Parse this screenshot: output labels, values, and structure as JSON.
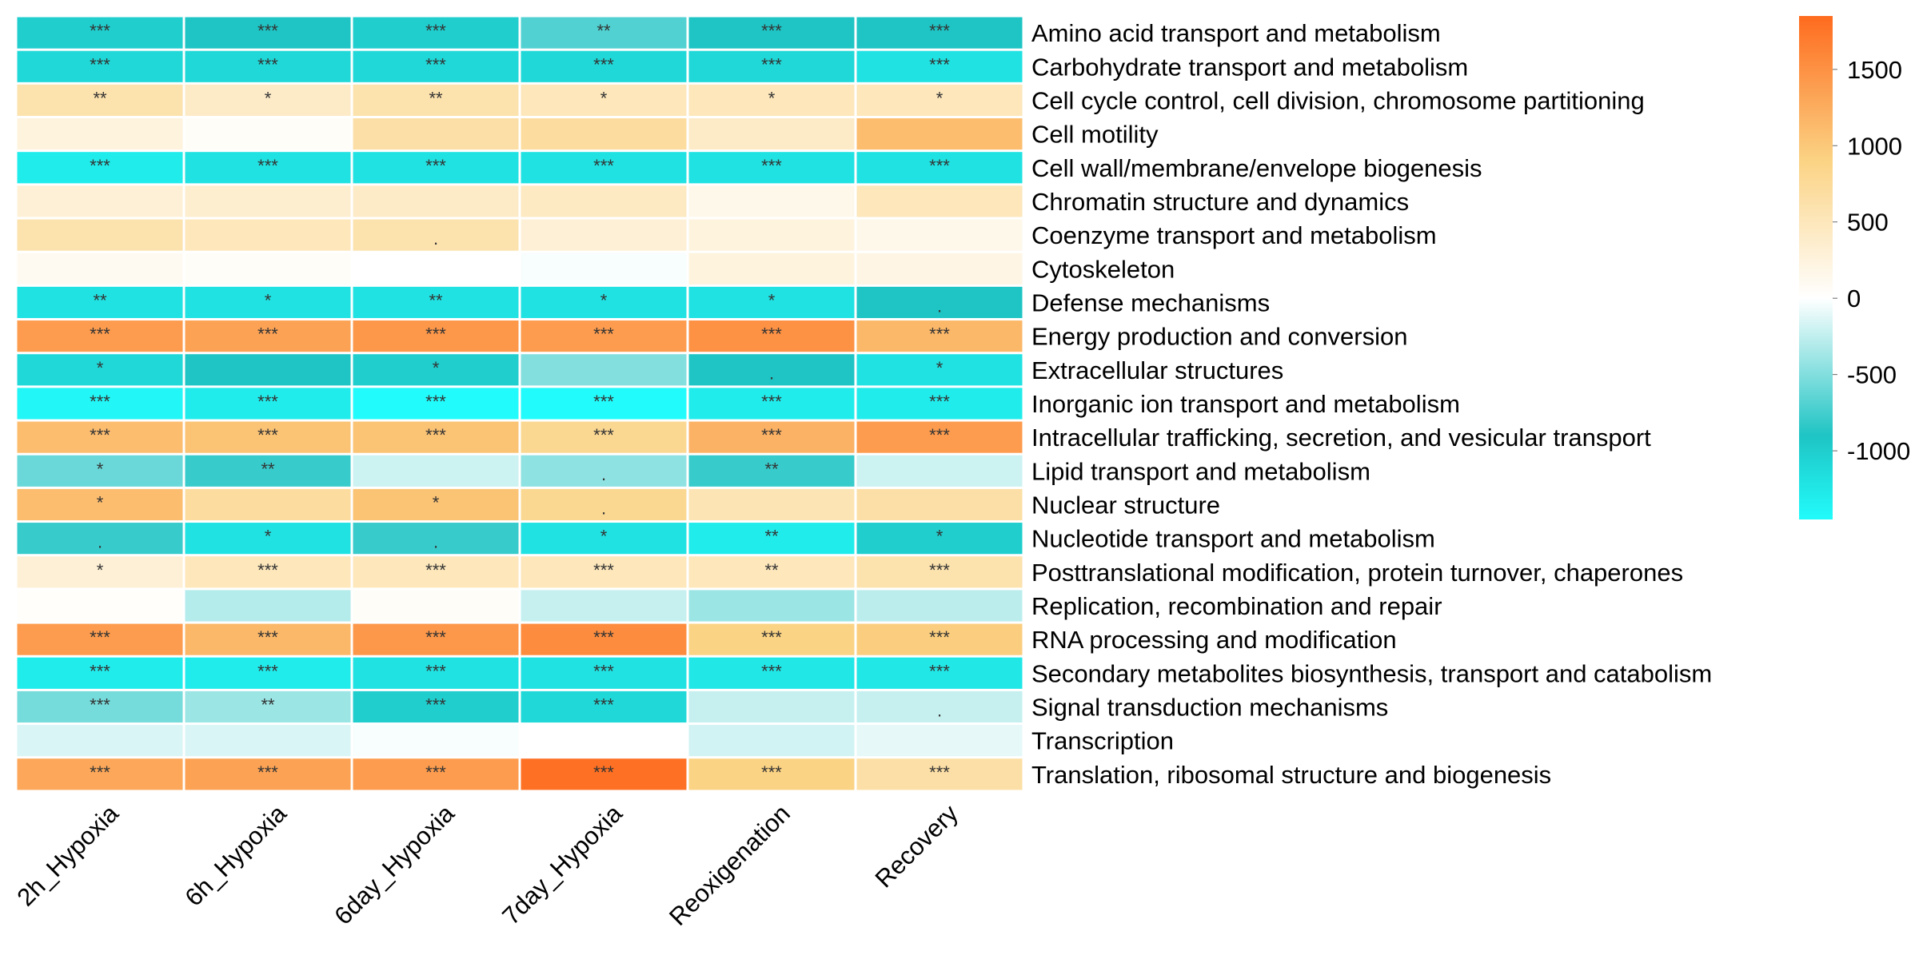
{
  "chart_data": {
    "type": "heatmap",
    "title": "",
    "xlabel": "",
    "ylabel": "",
    "columns": [
      "2h_Hypoxia",
      "6h_Hypoxia",
      "6day_Hypoxia",
      "7day_Hypoxia",
      "Reoxigenation",
      "Recovery"
    ],
    "rows": [
      "Amino acid transport and metabolism",
      "Carbohydrate transport and metabolism",
      "Cell cycle control, cell division, chromosome partitioning",
      "Cell motility",
      "Cell wall/membrane/envelope biogenesis",
      "Chromatin structure and dynamics",
      "Coenzyme transport and metabolism",
      "Cytoskeleton",
      "Defense mechanisms",
      "Energy production and conversion",
      "Extracellular structures",
      "Inorganic ion transport and metabolism",
      "Intracellular trafficking, secretion, and vesicular transport",
      "Lipid transport and metabolism",
      "Nuclear structure",
      "Nucleotide transport and metabolism",
      "Posttranslational modification, protein turnover, chaperones",
      "Replication, recombination and repair",
      "RNA processing and modification",
      "Secondary metabolites biosynthesis, transport and catabolism",
      "Signal transduction mechanisms",
      "Transcription",
      "Translation, ribosomal structure and biogenesis"
    ],
    "values": [
      [
        -1000,
        -900,
        -1000,
        -700,
        -900,
        -900
      ],
      [
        -1100,
        -1100,
        -1100,
        -1100,
        -1100,
        -1200
      ],
      [
        600,
        400,
        600,
        500,
        500,
        500
      ],
      [
        250,
        50,
        650,
        700,
        400,
        1100
      ],
      [
        -1300,
        -1200,
        -1200,
        -1200,
        -1200,
        -1200
      ],
      [
        300,
        350,
        400,
        450,
        150,
        500
      ],
      [
        600,
        500,
        600,
        300,
        250,
        150
      ],
      [
        100,
        50,
        0,
        -30,
        250,
        200
      ],
      [
        -1200,
        -1200,
        -1200,
        -1200,
        -1200,
        -900
      ],
      [
        1400,
        1350,
        1450,
        1400,
        1500,
        1150
      ],
      [
        -1100,
        -900,
        -1000,
        -500,
        -900,
        -1200
      ],
      [
        -1400,
        -1300,
        -1450,
        -1450,
        -1300,
        -1300
      ],
      [
        1100,
        1050,
        1050,
        800,
        1200,
        1400
      ],
      [
        -600,
        -800,
        -200,
        -450,
        -800,
        -200
      ],
      [
        1100,
        700,
        1050,
        800,
        550,
        650
      ],
      [
        -800,
        -1200,
        -800,
        -1200,
        -1300,
        -1000
      ],
      [
        300,
        500,
        500,
        500,
        500,
        600
      ],
      [
        30,
        -300,
        50,
        -230,
        -400,
        -270
      ],
      [
        1400,
        1150,
        1450,
        1550,
        900,
        950
      ],
      [
        -1300,
        -1300,
        -1200,
        -1200,
        -1250,
        -1250
      ],
      [
        -550,
        -400,
        -1000,
        -1100,
        -230,
        -230
      ],
      [
        -150,
        -150,
        -30,
        0,
        -180,
        -100
      ],
      [
        1300,
        1350,
        1400,
        1800,
        900,
        650
      ]
    ],
    "significance": [
      [
        "***",
        "***",
        "***",
        "**",
        "***",
        "***"
      ],
      [
        "***",
        "***",
        "***",
        "***",
        "***",
        "***"
      ],
      [
        "**",
        "*",
        "**",
        "*",
        "*",
        "*"
      ],
      [
        "",
        "",
        "",
        "",
        "",
        ""
      ],
      [
        "***",
        "***",
        "***",
        "***",
        "***",
        "***"
      ],
      [
        "",
        "",
        "",
        "",
        "",
        ""
      ],
      [
        "",
        "",
        ".",
        "",
        "",
        ""
      ],
      [
        "",
        "",
        "",
        "",
        "",
        ""
      ],
      [
        "**",
        "*",
        "**",
        "*",
        "*",
        "."
      ],
      [
        "***",
        "***",
        "***",
        "***",
        "***",
        "***"
      ],
      [
        "*",
        "",
        "*",
        "",
        ".",
        "*"
      ],
      [
        "***",
        "***",
        "***",
        "***",
        "***",
        "***"
      ],
      [
        "***",
        "***",
        "***",
        "***",
        "***",
        "***"
      ],
      [
        "*",
        "**",
        "",
        ".",
        "**",
        ""
      ],
      [
        "*",
        "",
        "*",
        ".",
        "",
        ""
      ],
      [
        ".",
        "*",
        ".",
        "*",
        "**",
        "*"
      ],
      [
        "*",
        "***",
        "***",
        "***",
        "**",
        "***"
      ],
      [
        "",
        "",
        "",
        "",
        "",
        ""
      ],
      [
        "***",
        "***",
        "***",
        "***",
        "***",
        "***"
      ],
      [
        "***",
        "***",
        "***",
        "***",
        "***",
        "***"
      ],
      [
        "***",
        "**",
        "***",
        "***",
        "",
        "."
      ],
      [
        "",
        "",
        "",
        "",
        "",
        ""
      ],
      [
        "***",
        "***",
        "***",
        "***",
        "***",
        "***"
      ]
    ],
    "color_scale": {
      "min": -1450,
      "max": 1850,
      "ticks": [
        1500,
        1000,
        500,
        0,
        -500,
        -1000
      ],
      "tick_labels": [
        "1500",
        "1000",
        "500",
        "0",
        "-500",
        "-1000"
      ],
      "stops": [
        {
          "value": -1450,
          "color": "#22fbfb"
        },
        {
          "value": -900,
          "color": "#1fc4c4"
        },
        {
          "value": 0,
          "color": "#ffffff"
        },
        {
          "value": 900,
          "color": "#fbd384"
        },
        {
          "value": 1850,
          "color": "#fe6b1e"
        }
      ]
    },
    "legend": "right"
  }
}
